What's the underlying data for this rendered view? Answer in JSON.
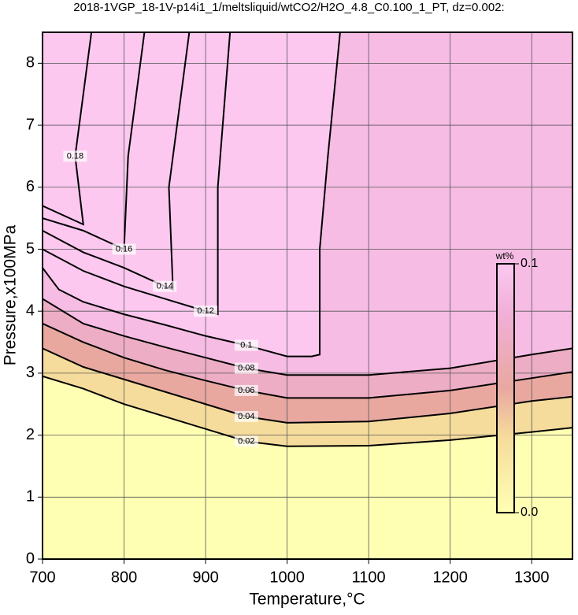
{
  "chart_data": {
    "type": "contour",
    "title": "2018-1VGP_18-1V-p14i1_1/meltsliquid/wtCO2/H2O_4.8_C0.100_1_PT, dz=0.002:",
    "x_label": "Temperature,°C",
    "y_label": "Pressure,x100MPa",
    "xlim": [
      700,
      1350
    ],
    "ylim": [
      0,
      8.5
    ],
    "xticks": [
      700,
      800,
      900,
      1000,
      1100,
      1200,
      1300
    ],
    "yticks": [
      0,
      1,
      2,
      3,
      4,
      5,
      6,
      7,
      8
    ],
    "grid": true,
    "line_color": "#000000",
    "colorbar": {
      "title": "wt%",
      "ticks": [
        {
          "value": 0,
          "label": "0.0"
        },
        0.1
      ]
    },
    "colormap": [
      {
        "value": 0,
        "color": "#ffffb4"
      },
      {
        "value": 0.03,
        "color": "#f6dc9c"
      },
      {
        "value": 0.05,
        "color": "#e8a8a0"
      },
      {
        "value": 0.08,
        "color": "#f0b0d8"
      },
      {
        "value": 0.1,
        "color": "#fcc8f0"
      }
    ],
    "contours": [
      {
        "level": 0.02,
        "x": [
          700,
          750,
          800,
          850,
          900,
          950,
          1000,
          1100,
          1200,
          1300,
          1350
        ],
        "y": [
          2.95,
          2.75,
          2.5,
          2.3,
          2.1,
          1.9,
          1.82,
          1.83,
          1.92,
          2.05,
          2.12
        ]
      },
      {
        "level": 0.04,
        "x": [
          700,
          750,
          800,
          850,
          900,
          950,
          1000,
          1100,
          1200,
          1300,
          1350
        ],
        "y": [
          3.4,
          3.1,
          2.9,
          2.7,
          2.5,
          2.3,
          2.2,
          2.22,
          2.35,
          2.55,
          2.62
        ]
      },
      {
        "level": 0.06,
        "x": [
          700,
          750,
          800,
          850,
          900,
          950,
          1000,
          1100,
          1200,
          1300,
          1350
        ],
        "y": [
          3.8,
          3.5,
          3.25,
          3.05,
          2.88,
          2.72,
          2.6,
          2.6,
          2.72,
          2.92,
          3.02
        ]
      },
      {
        "level": 0.08,
        "x": [
          700,
          750,
          800,
          850,
          900,
          950,
          1000,
          1100,
          1200,
          1300,
          1350
        ],
        "y": [
          4.2,
          3.8,
          3.6,
          3.42,
          3.25,
          3.08,
          2.97,
          2.97,
          3.08,
          3.3,
          3.4
        ]
      },
      {
        "level": 0.1,
        "x": [
          700,
          720,
          750,
          800,
          850,
          900,
          950,
          1000,
          1030,
          1040,
          1040,
          1050,
          1065
        ],
        "y": [
          4.7,
          4.35,
          4.15,
          3.95,
          3.78,
          3.6,
          3.45,
          3.27,
          3.27,
          3.3,
          5.0,
          6.5,
          8.5
        ]
      },
      {
        "level": 0.12,
        "x": [
          700,
          750,
          800,
          850,
          900,
          915,
          915,
          930
        ],
        "y": [
          5.0,
          4.65,
          4.4,
          4.2,
          4.0,
          3.95,
          6.0,
          8.5
        ]
      },
      {
        "level": 0.14,
        "x": [
          700,
          750,
          800,
          850,
          860,
          855,
          880
        ],
        "y": [
          5.3,
          4.95,
          4.7,
          4.4,
          4.35,
          6.0,
          8.5
        ]
      },
      {
        "level": 0.16,
        "x": [
          700,
          750,
          800,
          805,
          825
        ],
        "y": [
          5.5,
          5.3,
          5.0,
          6.5,
          8.5
        ]
      },
      {
        "level": 0.18,
        "x": [
          700,
          750,
          740,
          760
        ],
        "y": [
          5.7,
          5.4,
          6.5,
          8.5
        ]
      }
    ]
  }
}
